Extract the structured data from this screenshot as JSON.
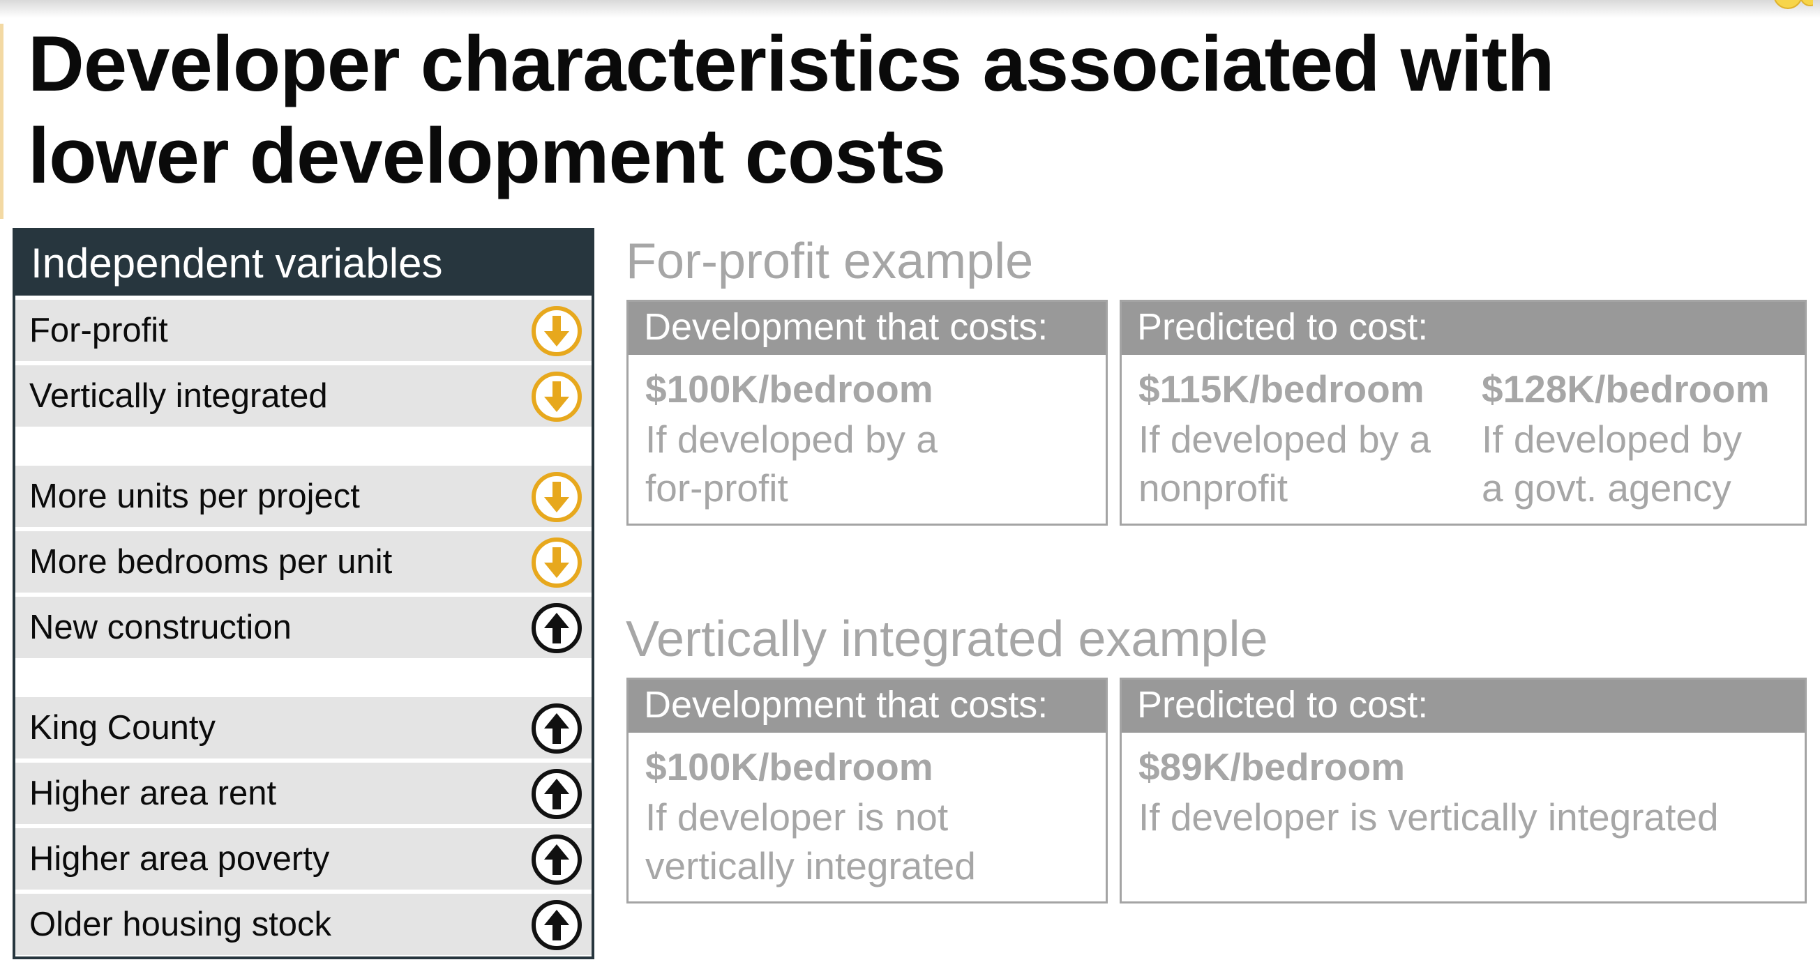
{
  "title": {
    "line1": "Developer characteristics associated with",
    "line2": "lower development costs"
  },
  "variables_table": {
    "header": "Independent variables",
    "groups": [
      [
        {
          "label": "For-profit",
          "direction": "down",
          "icon": "arrow-down-circle-icon"
        },
        {
          "label": "Vertically integrated",
          "direction": "down",
          "icon": "arrow-down-circle-icon"
        }
      ],
      [
        {
          "label": "More units per project",
          "direction": "down",
          "icon": "arrow-down-circle-icon"
        },
        {
          "label": "More bedrooms per unit",
          "direction": "down",
          "icon": "arrow-down-circle-icon"
        },
        {
          "label": "New construction",
          "direction": "up",
          "icon": "arrow-up-circle-icon"
        }
      ],
      [
        {
          "label": "King County",
          "direction": "up",
          "icon": "arrow-up-circle-icon"
        },
        {
          "label": "Higher area rent",
          "direction": "up",
          "icon": "arrow-up-circle-icon"
        },
        {
          "label": "Higher area poverty",
          "direction": "up",
          "icon": "arrow-up-circle-icon"
        },
        {
          "label": "Older housing stock",
          "direction": "up",
          "icon": "arrow-up-circle-icon"
        }
      ]
    ]
  },
  "forprofit_example": {
    "title": "For-profit example",
    "left_header": "Development that costs:",
    "right_header": "Predicted to cost:",
    "base": {
      "amount": "$100K/bedroom",
      "line1": "If developed by a",
      "line2": "for-profit"
    },
    "predictions": [
      {
        "amount": "$115K/bedroom",
        "line1": "If developed by a",
        "line2": "nonprofit"
      },
      {
        "amount": "$128K/bedroom",
        "line1": "If developed by",
        "line2": "a govt. agency"
      }
    ]
  },
  "vertical_example": {
    "title": "Vertically integrated example",
    "left_header": "Development that costs:",
    "right_header": "Predicted to cost:",
    "base": {
      "amount": "$100K/bedroom",
      "line1": "If developer is not",
      "line2": "vertically integrated"
    },
    "prediction": {
      "amount": "$89K/bedroom",
      "line1": "If developer is vertically integrated"
    }
  },
  "colors": {
    "table_header": "#27363e",
    "row_bg": "#e4e4e4",
    "down_arrow": "#e7a81d",
    "up_arrow": "#111111",
    "muted_text": "#a6a6a6",
    "box_header": "#999999"
  }
}
